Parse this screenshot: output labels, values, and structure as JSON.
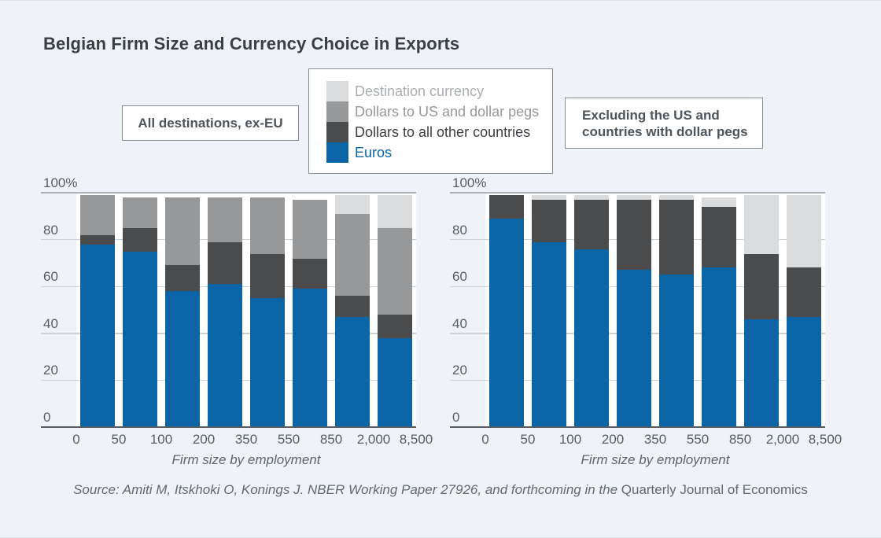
{
  "page": {
    "title": "Belgian Firm Size and Currency Choice in Exports",
    "background_color": "#eff3f7",
    "source_italic_part": "Source: Amiti M, Itskhoki O, Konings J. NBER Working Paper 27926, and forthcoming in the ",
    "source_upright_part": "Quarterly Journal of Economics"
  },
  "panel_labels": {
    "left": "All destinations, ex-EU",
    "right_line1": "Excluding the US and",
    "right_line2": "countries with dollar pegs"
  },
  "legend": {
    "position": "top-center",
    "items": [
      {
        "label": "Destination currency",
        "color": "#d9dbdd",
        "text_color": "#abaeb1"
      },
      {
        "label": "Dollars to US and dollar pegs",
        "color": "#96989a",
        "text_color": "#96999c"
      },
      {
        "label": "Dollars to all other countries",
        "color": "#494b4d",
        "text_color": "#3c4045"
      },
      {
        "label": "Euros",
        "color": "#0a64a6",
        "text_color": "#0a64a6"
      }
    ]
  },
  "chart_data": [
    {
      "type": "bar",
      "stacked": true,
      "panel_label": "All destinations, ex-EU",
      "xlabel": "Firm size by employment",
      "x_bin_edges": [
        "0",
        "50",
        "100",
        "200",
        "350",
        "550",
        "850",
        "2,000",
        "8,500"
      ],
      "bins": [
        "0-50",
        "50-100",
        "100-200",
        "200-350",
        "350-550",
        "550-850",
        "850-2,000",
        "2,000-8,500"
      ],
      "ylim": [
        0,
        100
      ],
      "grid": true,
      "yticks": [
        {
          "value": 0,
          "label": "0"
        },
        {
          "value": 20,
          "label": "20"
        },
        {
          "value": 40,
          "label": "40"
        },
        {
          "value": 60,
          "label": "60"
        },
        {
          "value": 80,
          "label": "80"
        },
        {
          "value": 100,
          "label": "100%"
        }
      ],
      "stack_order": "bottom_to_top",
      "series": [
        {
          "name": "Euros",
          "color": "#0a64a6",
          "values": [
            78,
            75,
            58,
            61,
            55,
            59,
            47,
            38
          ]
        },
        {
          "name": "Dollars to all other countries",
          "color": "#494b4d",
          "values": [
            4,
            10,
            11,
            18,
            19,
            13,
            9,
            10
          ]
        },
        {
          "name": "Dollars to US and dollar pegs",
          "color": "#96989a",
          "values": [
            17,
            13,
            29,
            19,
            24,
            25,
            35,
            37
          ]
        },
        {
          "name": "Destination currency",
          "color": "#d9dbdd",
          "values": [
            0,
            0,
            0,
            0,
            0,
            0,
            8,
            14
          ]
        }
      ]
    },
    {
      "type": "bar",
      "stacked": true,
      "panel_label": "Excluding the US and countries with dollar pegs",
      "xlabel": "Firm size by employment",
      "x_bin_edges": [
        "0",
        "50",
        "100",
        "200",
        "350",
        "550",
        "850",
        "2,000",
        "8,500"
      ],
      "bins": [
        "0-50",
        "50-100",
        "100-200",
        "200-350",
        "350-550",
        "550-850",
        "850-2,000",
        "2,000-8,500"
      ],
      "ylim": [
        0,
        100
      ],
      "grid": true,
      "yticks": [
        {
          "value": 0,
          "label": "0"
        },
        {
          "value": 20,
          "label": "20"
        },
        {
          "value": 40,
          "label": "40"
        },
        {
          "value": 60,
          "label": "60"
        },
        {
          "value": 80,
          "label": "80"
        },
        {
          "value": 100,
          "label": "100%"
        }
      ],
      "stack_order": "bottom_to_top",
      "series": [
        {
          "name": "Euros",
          "color": "#0a64a6",
          "values": [
            89,
            79,
            76,
            67,
            65,
            68,
            46,
            47
          ]
        },
        {
          "name": "Dollars to all other countries",
          "color": "#494b4d",
          "values": [
            10,
            18,
            21,
            30,
            32,
            26,
            28,
            21
          ]
        },
        {
          "name": "Dollars to US and dollar pegs",
          "color": "#96989a",
          "values": [
            0,
            0,
            0,
            0,
            0,
            0,
            0,
            0
          ]
        },
        {
          "name": "Destination currency",
          "color": "#d9dbdd",
          "values": [
            0,
            2,
            2,
            2,
            2,
            4,
            25,
            31
          ]
        }
      ]
    }
  ]
}
